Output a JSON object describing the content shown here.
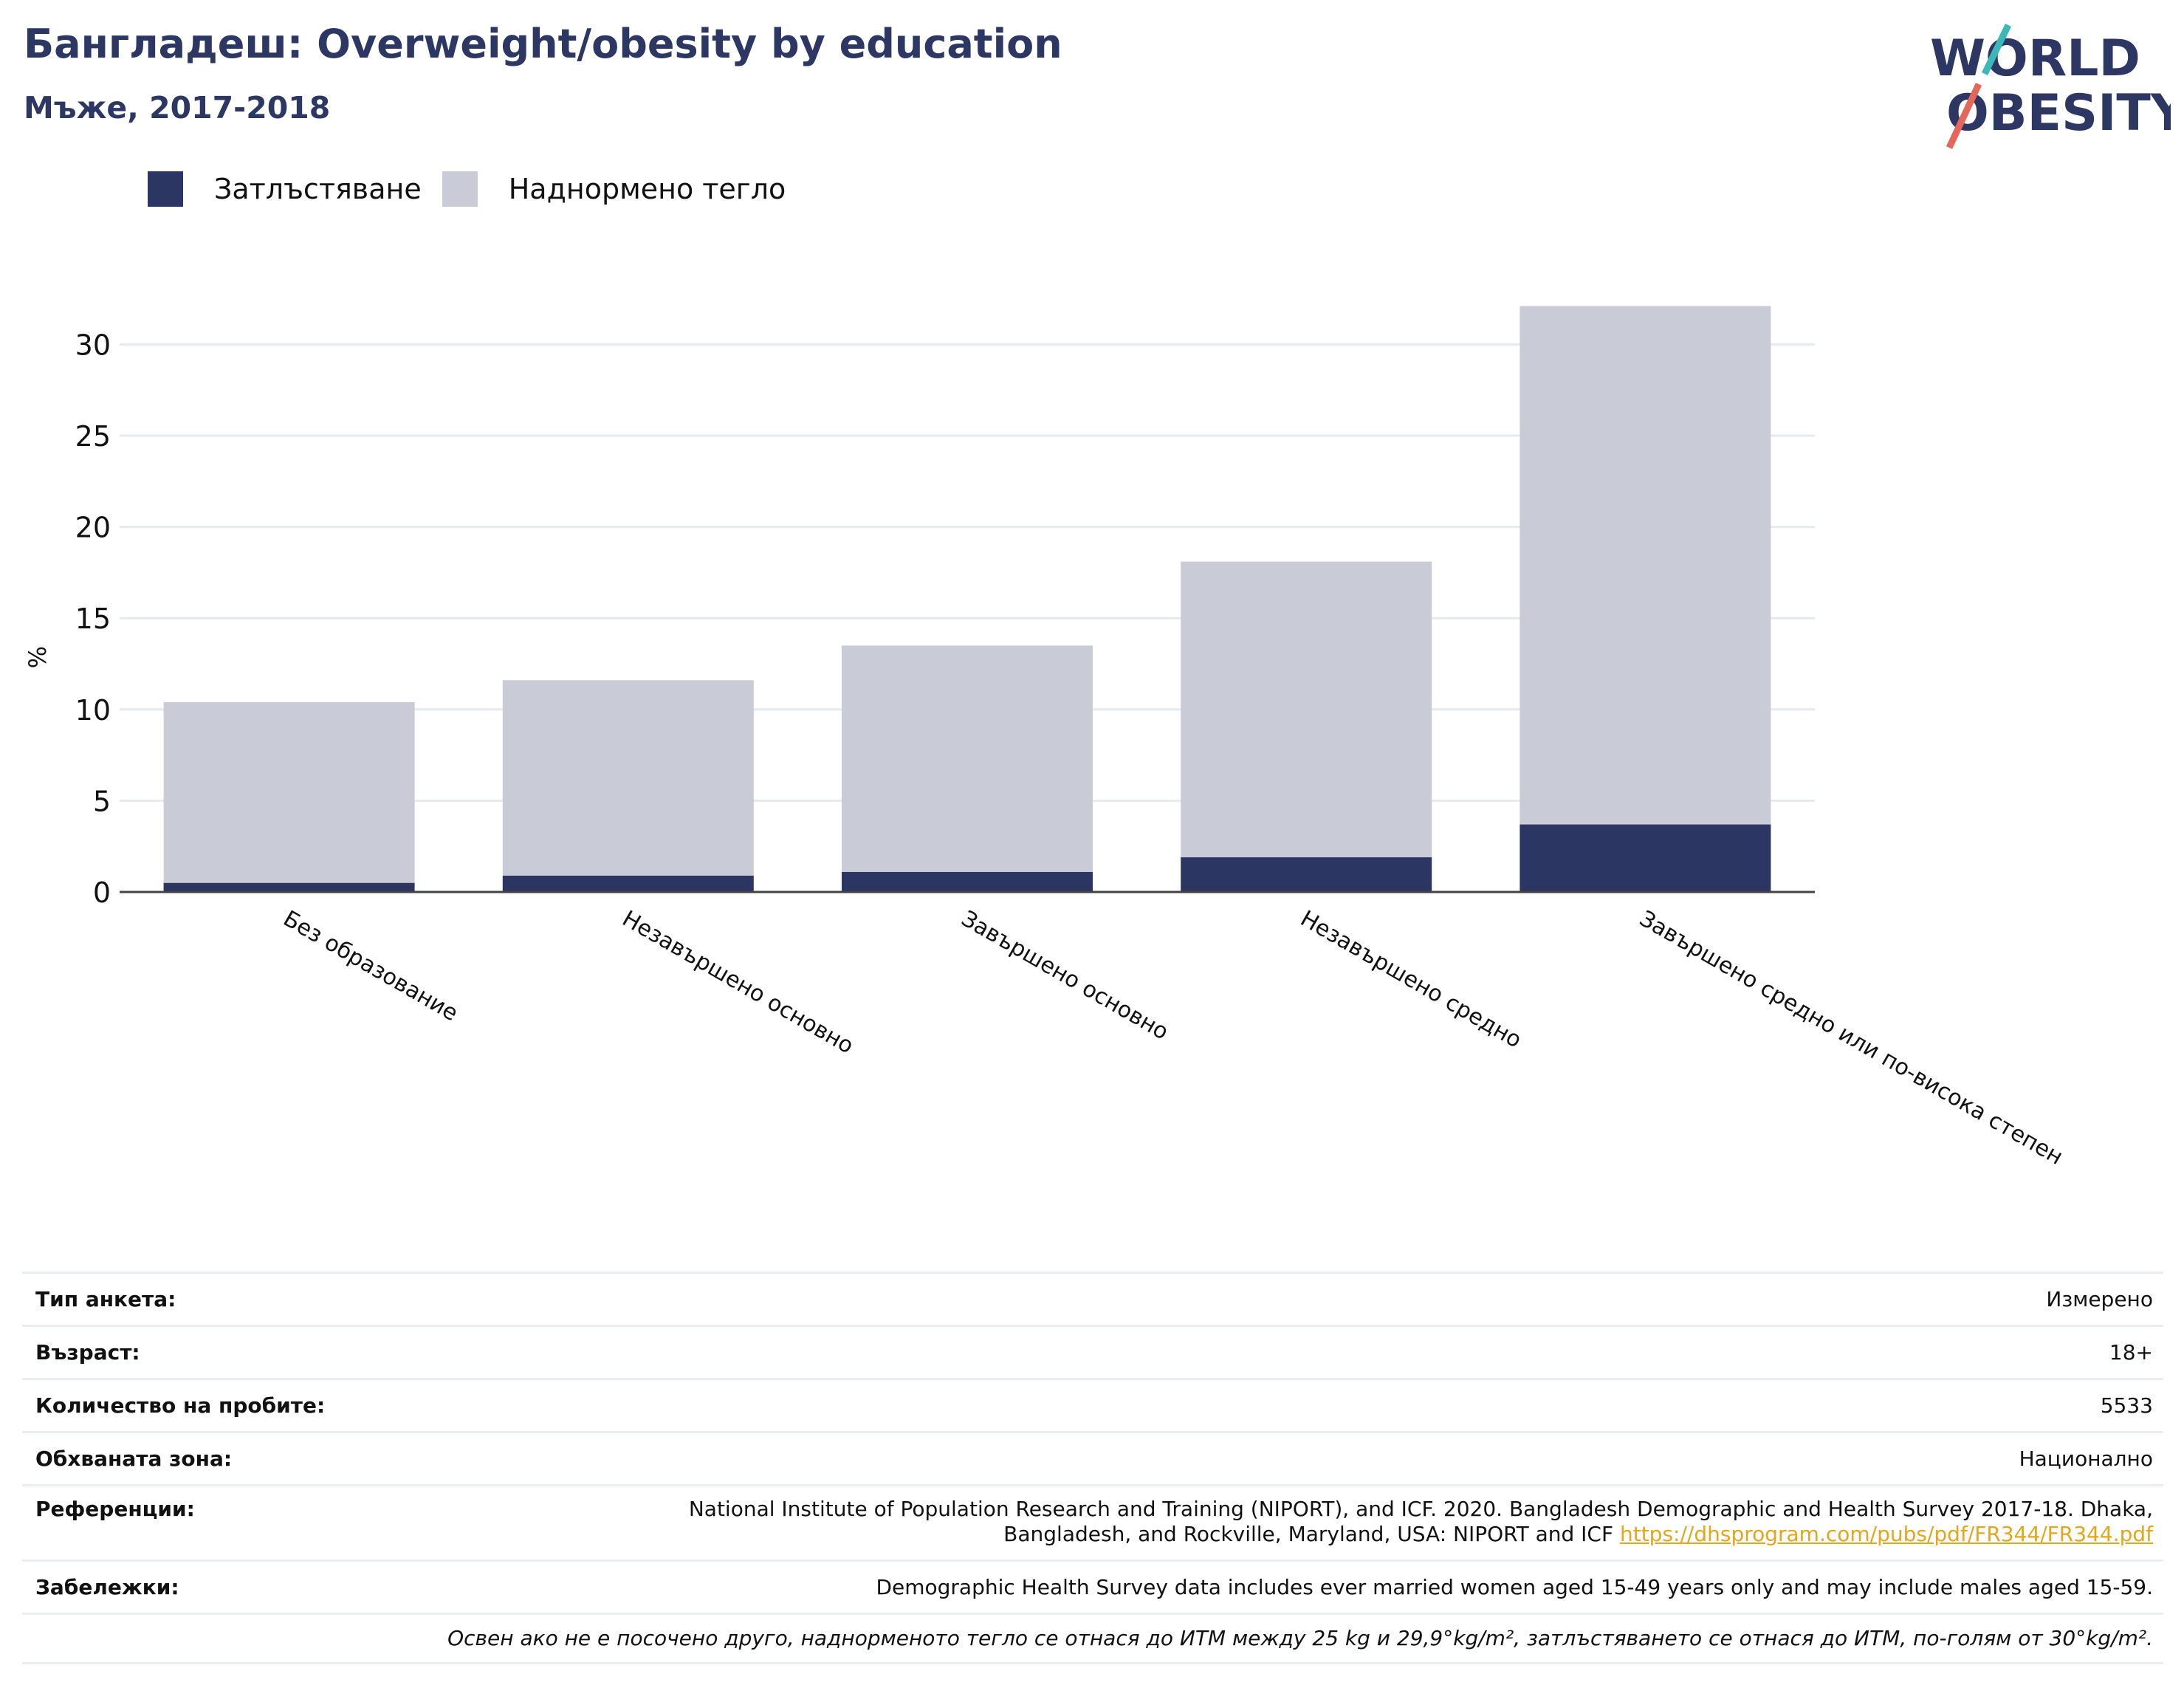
{
  "header": {
    "title": "Бангладеш: Overweight/obesity by education",
    "subtitle": "Мъже, 2017-2018"
  },
  "logo": {
    "line1": "WORLD",
    "line2": "OBESITY"
  },
  "colors": {
    "obesity": "#2b3663",
    "overweight": "#c9cbd6",
    "title": "#2c3764",
    "grid": "#e6e9ee",
    "axis": "#444444",
    "link": "#e4a71b"
  },
  "chart_data": {
    "type": "bar",
    "stacked": true,
    "categories": [
      "Без образование",
      "Незавършено основно",
      "Завършено основно",
      "Незавършено средно",
      "Завършено средно или по-висока степен"
    ],
    "series": [
      {
        "name": "Затлъстяване",
        "values": [
          0.5,
          0.9,
          1.1,
          1.9,
          3.7
        ]
      },
      {
        "name": "Наднормено тегло",
        "values": [
          9.9,
          10.7,
          12.4,
          16.2,
          28.4
        ]
      }
    ],
    "ylabel": "%",
    "ylim": [
      0,
      32.2
    ],
    "yticks": [
      "0",
      "5",
      "10",
      "15",
      "20",
      "25",
      "30"
    ],
    "grid": true,
    "legend": "top-left"
  },
  "meta": {
    "survey_type": {
      "label": "Тип анкета:",
      "value": "Измерено"
    },
    "age": {
      "label": "Възраст:",
      "value": "18+"
    },
    "sample_size": {
      "label": "Количество на пробите:",
      "value": "5533"
    },
    "area": {
      "label": "Обхваната зона:",
      "value": "Национално"
    },
    "references": {
      "label": "Референции:",
      "line1": "National Institute of Population Research and Training (NIPORT), and ICF. 2020. Bangladesh Demographic and Health Survey 2017-18. Dhaka,",
      "line2": "Bangladesh, and Rockville, Maryland, USA: NIPORT and ICF",
      "link": "https://dhsprogram.com/pubs/pdf/FR344/FR344.pdf"
    },
    "notes": {
      "label": "Забележки:",
      "value": "Demographic Health Survey data includes ever married women aged 15-49 years only and may include males aged 15-59."
    },
    "footnote": "Освен ако не е посочено друго, наднорменото тегло се отнася до ИТМ между 25 kg и 29,9°kg/m², затлъстяването се отнася до ИТМ, по-голям от 30°kg/m²."
  }
}
